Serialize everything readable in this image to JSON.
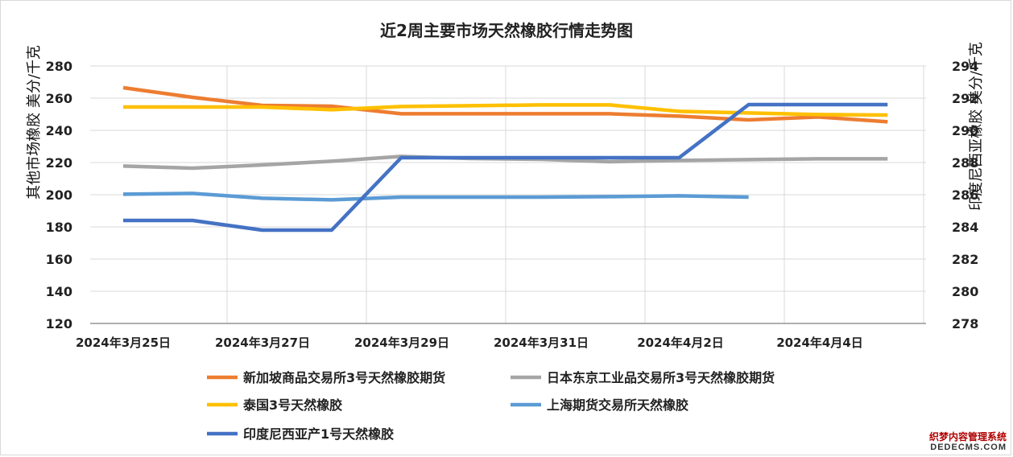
{
  "chart_data": {
    "type": "line",
    "title": "近2周主要市场天然橡胶行情走势图",
    "ylabel_left": "其他市场橡胶  美分/千克",
    "ylabel_right": "印度尼西亚橡胶  美分/千克",
    "ylim_left": [
      120,
      280
    ],
    "ylim_right": [
      278,
      294
    ],
    "yticks_left": [
      120,
      140,
      160,
      180,
      200,
      220,
      240,
      260,
      280
    ],
    "yticks_right": [
      278,
      280,
      282,
      284,
      286,
      288,
      290,
      292,
      294
    ],
    "x_dates": [
      "2024年3月25日",
      "2024年3月26日",
      "2024年3月27日",
      "2024年3月28日",
      "2024年3月29日",
      "2024年3月30日",
      "2024年3月31日",
      "2024年4月1日",
      "2024年4月2日",
      "2024年4月3日",
      "2024年4月4日",
      "2024年4月5日"
    ],
    "x_tick_labels": [
      "2024年3月25日",
      "2024年3月27日",
      "2024年3月29日",
      "2024年3月31日",
      "2024年4月2日",
      "2024年4月4日"
    ],
    "grid": true,
    "legend_position": "bottom",
    "series": [
      {
        "name": "新加坡商品交易所3号天然橡胶期货",
        "axis": "left",
        "color": "#ED7D31",
        "values": [
          266.5,
          260.5,
          255.5,
          255,
          250.3,
          250.3,
          250.3,
          250.3,
          248.8,
          246.5,
          248.3,
          245.3
        ]
      },
      {
        "name": "日本东京工业品交易所3号天然橡胶期货",
        "axis": "left",
        "color": "#A5A5A5",
        "values": [
          217.8,
          216.5,
          218.5,
          220.8,
          223.8,
          222.5,
          222,
          220.5,
          221.3,
          221.8,
          222.3,
          222.3
        ]
      },
      {
        "name": "泰国3号天然橡胶",
        "axis": "left",
        "color": "#FFC000",
        "values": [
          254.5,
          254.5,
          254.5,
          252.8,
          254.8,
          255.3,
          255.8,
          255.8,
          251.8,
          250.8,
          249.8,
          249.5
        ]
      },
      {
        "name": "上海期货交易所天然橡胶",
        "axis": "left",
        "color": "#5B9BD5",
        "values": [
          200.3,
          200.8,
          197.8,
          196.8,
          198.5,
          198.5,
          198.5,
          198.8,
          199.3,
          198.5,
          null,
          null
        ]
      },
      {
        "name": "印度尼西亚产1号天然橡胶",
        "axis": "right",
        "color": "#4472C4",
        "values": [
          284.4,
          284.4,
          283.8,
          283.8,
          288.3,
          288.3,
          288.3,
          288.3,
          288.3,
          291.6,
          291.6,
          291.6
        ]
      }
    ]
  },
  "watermark": {
    "line1": "织梦内容管理系统",
    "line2": "DEDECMS.COM"
  }
}
